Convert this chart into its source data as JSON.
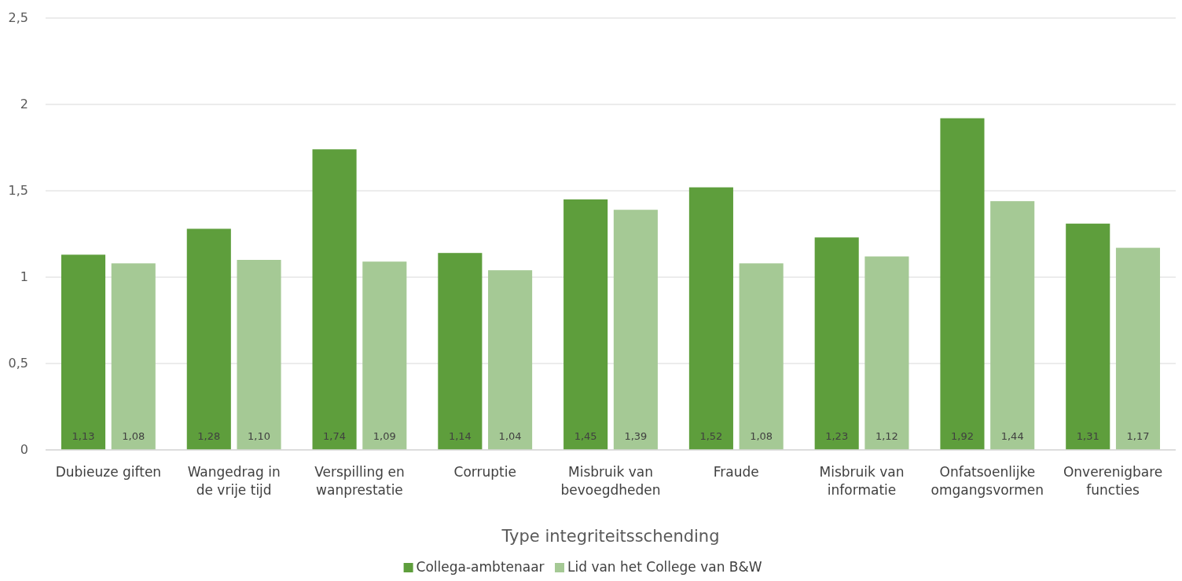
{
  "chart_data": {
    "type": "bar",
    "xlabel": "Type integriteitsschending",
    "categories": [
      "Dubieuze giften",
      "Wangedrag in\nde vrije tijd",
      "Verspilling en\nwanprestatie",
      "Corruptie",
      "Misbruik van\nbevoegdheden",
      "Fraude",
      "Misbruik van\ninformatie",
      "Onfatsoenlijke\nomgangsvormen",
      "Onverenigbare\nfuncties"
    ],
    "series": [
      {
        "name": "Collega-ambtenaar",
        "color": "#5e9e3c",
        "values": [
          1.13,
          1.28,
          1.74,
          1.14,
          1.45,
          1.52,
          1.23,
          1.92,
          1.31
        ],
        "value_labels": [
          "1,13",
          "1,28",
          "1,74",
          "1,14",
          "1,45",
          "1,52",
          "1,23",
          "1,92",
          "1,31"
        ]
      },
      {
        "name": "Lid van het College van B&W",
        "color": "#a5c995",
        "values": [
          1.08,
          1.1,
          1.09,
          1.04,
          1.39,
          1.08,
          1.12,
          1.44,
          1.17
        ],
        "value_labels": [
          "1,08",
          "1,10",
          "1,09",
          "1,04",
          "1,39",
          "1,08",
          "1,12",
          "1,44",
          "1,17"
        ]
      }
    ],
    "ylim": [
      0,
      2.5
    ],
    "yticks": [
      0,
      {
        "value": 0.5,
        "label": "0,5"
      },
      1,
      {
        "value": 1.5,
        "label": "1,5"
      },
      2,
      {
        "value": 2.5,
        "label": "2,5"
      }
    ],
    "grid": "y",
    "legend": "bottom"
  }
}
